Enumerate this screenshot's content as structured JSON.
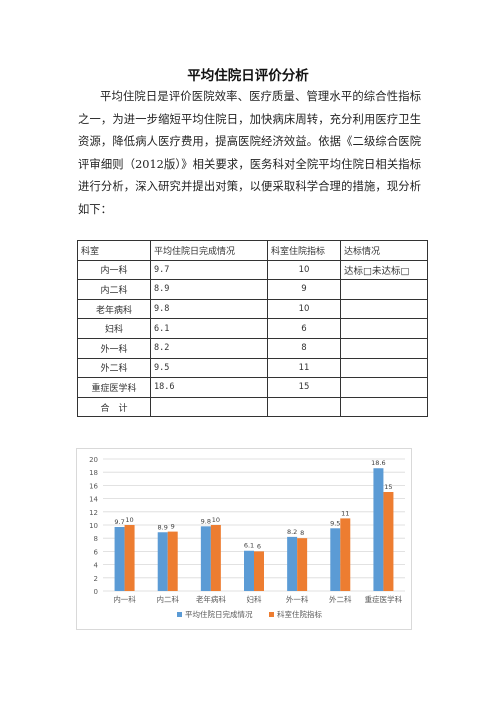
{
  "document": {
    "title": "平均住院日评价分析",
    "intro": "平均住院日是评价医院效率、医疗质量、管理水平的综合性指标之一，为进一步缩短平均住院日，加快病床周转，充分利用医疗卫生资源，降低病人医疗费用，提高医院经济效益。依据《二级综合医院评审细则（2012版）》相关要求，医务科对全院平均住院日相关指标进行分析，深入研究并提出对策，以便采取科学合理的措施，现分析如下："
  },
  "table": {
    "headers": [
      "科室",
      "平均住院日完成情况",
      "科室住院指标",
      "达标情况"
    ],
    "rows": [
      {
        "dept": "内一科",
        "actual": "9.7",
        "target": "10",
        "status": "达标□未达标□"
      },
      {
        "dept": "内二科",
        "actual": "8.9",
        "target": "9",
        "status": ""
      },
      {
        "dept": "老年病科",
        "actual": "9.8",
        "target": "10",
        "status": ""
      },
      {
        "dept": "妇科",
        "actual": "6.1",
        "target": "6",
        "status": ""
      },
      {
        "dept": "外一科",
        "actual": "8.2",
        "target": "8",
        "status": ""
      },
      {
        "dept": "外二科",
        "actual": "9.5",
        "target": "11",
        "status": ""
      },
      {
        "dept": "重症医学科",
        "actual": "18.6",
        "target": "15",
        "status": ""
      },
      {
        "dept": "合　计",
        "actual": "",
        "target": "",
        "status": ""
      }
    ]
  },
  "chart_data": {
    "type": "bar",
    "categories": [
      "内一科",
      "内二科",
      "老年病科",
      "妇科",
      "外一科",
      "外二科",
      "重症医学科"
    ],
    "series": [
      {
        "name": "平均住院日完成情况",
        "values": [
          9.7,
          8.9,
          9.8,
          6.1,
          8.2,
          9.5,
          18.6
        ],
        "color": "#5b9bd5"
      },
      {
        "name": "科室住院指标",
        "values": [
          10,
          9,
          10,
          6,
          8,
          11,
          15
        ],
        "color": "#ed7d31"
      }
    ],
    "ylim": [
      0,
      20
    ],
    "yticks": [
      0,
      2,
      4,
      6,
      8,
      10,
      12,
      14,
      16,
      18,
      20
    ],
    "grid": true,
    "legend": "bottom"
  }
}
